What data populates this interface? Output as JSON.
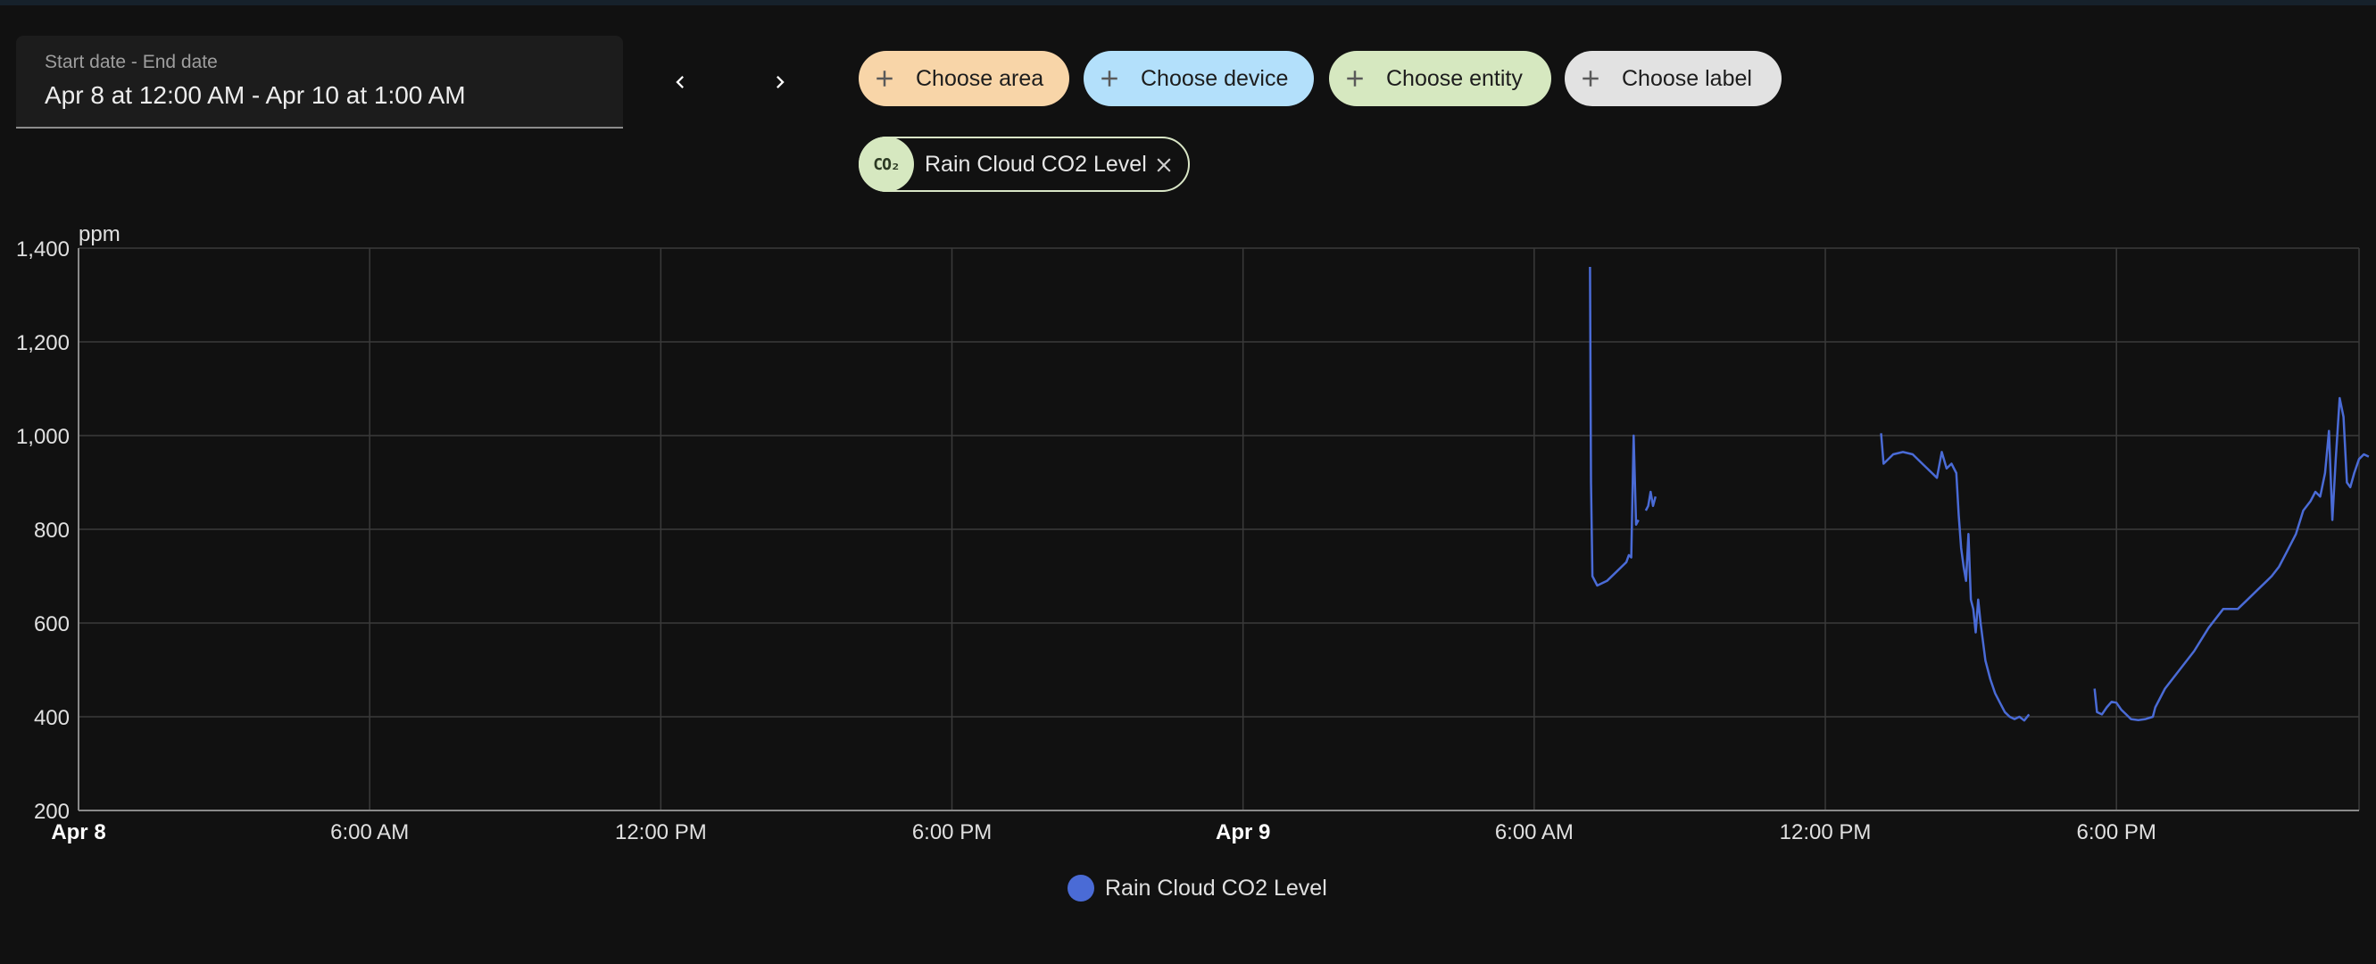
{
  "date_range": {
    "label": "Start date - End date",
    "value": "Apr 8 at 12:00 AM - Apr 10 at 1:00 AM"
  },
  "nav": {
    "prev_icon": "chevron-left-icon",
    "next_icon": "chevron-right-icon"
  },
  "targets": {
    "area": {
      "label": "Choose area",
      "color": "#f8d5a8"
    },
    "device": {
      "label": "Choose device",
      "color": "#b3e0fb"
    },
    "entity": {
      "label": "Choose entity",
      "color": "#d6e8c0"
    },
    "label": {
      "label": "Choose label",
      "color": "#e2e2e2"
    }
  },
  "selected_entity": {
    "icon_text": "CO₂",
    "name": "Rain Cloud CO2 Level"
  },
  "chart_data": {
    "type": "line",
    "ylabel": "ppm",
    "ylim": [
      200,
      1400
    ],
    "yticks": [
      "1,400",
      "1,200",
      "1,000",
      "800",
      "600",
      "400",
      "200"
    ],
    "xlim_hours": [
      0,
      47
    ],
    "xticks": [
      {
        "label": "Apr 8",
        "bold": true
      },
      {
        "label": "6:00 AM",
        "bold": false
      },
      {
        "label": "12:00 PM",
        "bold": false
      },
      {
        "label": "6:00 PM",
        "bold": false
      },
      {
        "label": "Apr 9",
        "bold": true
      },
      {
        "label": "6:00 AM",
        "bold": false
      },
      {
        "label": "12:00 PM",
        "bold": false
      },
      {
        "label": "6:00 PM",
        "bold": false
      }
    ],
    "grid": true,
    "legend_position": "bottom",
    "series": [
      {
        "name": "Rain Cloud CO2 Level",
        "color": "#4a6bd6",
        "segments": [
          [
            [
              31.15,
              1360
            ],
            [
              31.17,
              900
            ],
            [
              31.2,
              700
            ],
            [
              31.3,
              680
            ],
            [
              31.5,
              690
            ],
            [
              31.7,
              710
            ],
            [
              31.9,
              730
            ],
            [
              31.95,
              745
            ],
            [
              32.0,
              740
            ],
            [
              32.05,
              1000
            ],
            [
              32.1,
              810
            ],
            [
              32.15,
              820
            ]
          ],
          [
            [
              32.3,
              840
            ],
            [
              32.35,
              850
            ],
            [
              32.4,
              880
            ],
            [
              32.45,
              850
            ],
            [
              32.5,
              870
            ]
          ],
          [
            [
              37.15,
              1005
            ],
            [
              37.2,
              940
            ],
            [
              37.4,
              960
            ],
            [
              37.6,
              965
            ],
            [
              37.8,
              960
            ],
            [
              38.0,
              940
            ],
            [
              38.2,
              920
            ],
            [
              38.3,
              910
            ],
            [
              38.4,
              965
            ],
            [
              38.5,
              930
            ],
            [
              38.6,
              940
            ],
            [
              38.7,
              920
            ],
            [
              38.75,
              830
            ],
            [
              38.8,
              760
            ],
            [
              38.85,
              720
            ],
            [
              38.9,
              690
            ],
            [
              38.95,
              790
            ],
            [
              39.0,
              650
            ],
            [
              39.05,
              630
            ],
            [
              39.1,
              580
            ],
            [
              39.15,
              650
            ],
            [
              39.2,
              600
            ],
            [
              39.3,
              520
            ],
            [
              39.4,
              480
            ],
            [
              39.5,
              450
            ],
            [
              39.6,
              430
            ],
            [
              39.7,
              410
            ],
            [
              39.8,
              400
            ],
            [
              39.9,
              395
            ],
            [
              40.0,
              400
            ],
            [
              40.1,
              392
            ],
            [
              40.2,
              405
            ]
          ],
          [
            [
              41.55,
              460
            ],
            [
              41.6,
              410
            ],
            [
              41.7,
              405
            ],
            [
              41.8,
              420
            ],
            [
              41.9,
              432
            ],
            [
              42.0,
              430
            ],
            [
              42.1,
              415
            ],
            [
              42.2,
              405
            ],
            [
              42.3,
              395
            ],
            [
              42.45,
              393
            ],
            [
              42.6,
              395
            ],
            [
              42.75,
              400
            ],
            [
              42.8,
              420
            ],
            [
              43.0,
              460
            ],
            [
              43.3,
              500
            ],
            [
              43.6,
              540
            ],
            [
              43.9,
              590
            ],
            [
              44.2,
              630
            ],
            [
              44.5,
              630
            ],
            [
              44.7,
              650
            ],
            [
              44.9,
              670
            ],
            [
              45.1,
              690
            ],
            [
              45.2,
              700
            ],
            [
              45.35,
              720
            ],
            [
              45.5,
              750
            ],
            [
              45.7,
              790
            ],
            [
              45.85,
              840
            ],
            [
              46.0,
              860
            ],
            [
              46.1,
              880
            ],
            [
              46.2,
              870
            ],
            [
              46.3,
              920
            ],
            [
              46.38,
              1010
            ],
            [
              46.45,
              820
            ],
            [
              46.52,
              950
            ],
            [
              46.6,
              1080
            ],
            [
              46.68,
              1040
            ],
            [
              46.75,
              900
            ],
            [
              46.82,
              890
            ],
            [
              46.9,
              920
            ],
            [
              47.0,
              950
            ],
            [
              47.1,
              960
            ],
            [
              47.2,
              955
            ]
          ]
        ]
      }
    ]
  },
  "legend": {
    "dot_color": "#4a6bd6",
    "label": "Rain Cloud CO2 Level"
  }
}
